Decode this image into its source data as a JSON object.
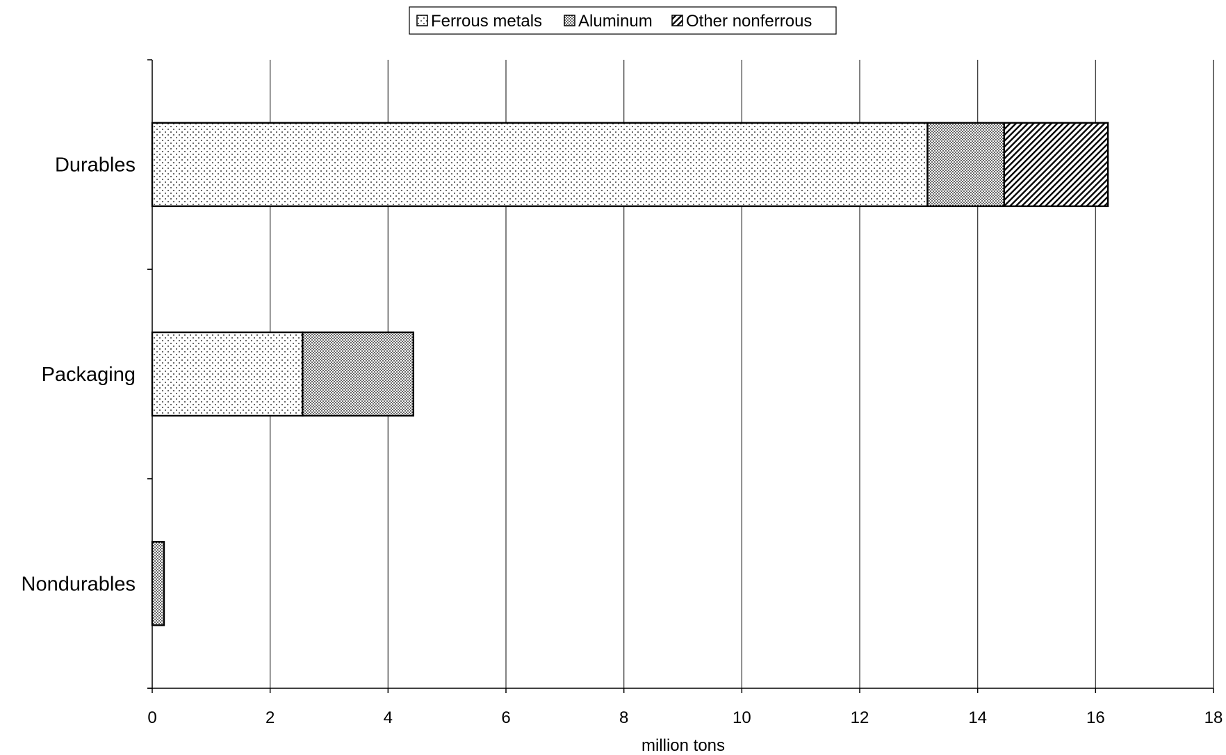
{
  "chart_data": {
    "type": "bar",
    "orientation": "horizontal",
    "stacked": true,
    "categories": [
      "Durables",
      "Packaging",
      "Nondurables"
    ],
    "series": [
      {
        "name": "Ferrous metals",
        "values": [
          13.15,
          2.55,
          0
        ],
        "pattern": "sparse-dots"
      },
      {
        "name": "Aluminum",
        "values": [
          1.3,
          1.88,
          0.2
        ],
        "pattern": "dense-dots"
      },
      {
        "name": "Other nonferrous",
        "values": [
          1.76,
          0,
          0
        ],
        "pattern": "diagonal-hatch"
      }
    ],
    "xlabel": "million tons",
    "ylabel": "",
    "title": "",
    "xlim": [
      0,
      18
    ],
    "xticks": [
      0,
      2,
      4,
      6,
      8,
      10,
      12,
      14,
      16,
      18
    ],
    "xtick_labels": [
      "0",
      "2",
      "4",
      "6",
      "8",
      "10",
      "12",
      "14",
      "16",
      "18"
    ],
    "grid": true,
    "legend_position": "top-center",
    "colors": {
      "bar_fill": "#ffffff",
      "bar_stroke": "#000000",
      "grid": "#404040"
    }
  }
}
